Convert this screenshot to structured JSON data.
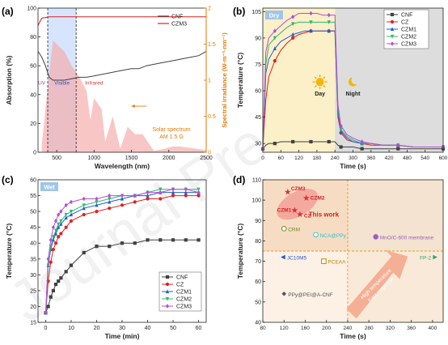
{
  "figure": {
    "watermark": "Journal Pre-proofs",
    "colors": {
      "CNF": "#404040",
      "CZ": "#e02020",
      "CZM1": "#1f5fd6",
      "CZM2": "#2fb86b",
      "CZM3": "#b34fd6",
      "orange": "#e07a00",
      "dark": "#222222"
    }
  },
  "chart_data": [
    {
      "panel": "(a)",
      "type": "line",
      "xlabel": "Wavelength (nm)",
      "ylabel": "Absorption (%)",
      "y2label": "Spectral irradiance (W·m⁻²·nm⁻¹)",
      "xlim": [
        250,
        2500
      ],
      "ylim": [
        0,
        100
      ],
      "y2lim": [
        0,
        2.0
      ],
      "xticks": [
        500,
        1000,
        1500,
        2000,
        2500
      ],
      "yticks": [
        0,
        20,
        40,
        60,
        80,
        100
      ],
      "y2ticks": [
        0.0,
        0.5,
        1.0,
        1.5,
        2.0
      ],
      "regions": [
        {
          "label": "UV",
          "from": 250,
          "to": 380
        },
        {
          "label": "Visible",
          "from": 380,
          "to": 760
        },
        {
          "label": "Infrared",
          "from": 760,
          "to": 2500
        }
      ],
      "annotation": [
        "Solar spectrum",
        "AM 1.5 G"
      ],
      "legend": "top-right",
      "series": [
        {
          "name": "CNF",
          "x": [
            250,
            300,
            350,
            400,
            450,
            500,
            600,
            700,
            800,
            900,
            1000,
            1100,
            1200,
            1300,
            1400,
            1500,
            1600,
            1700,
            1800,
            1900,
            2000,
            2100,
            2200,
            2300,
            2400,
            2500
          ],
          "values": [
            70,
            66,
            60,
            52,
            50,
            50,
            50,
            51,
            52,
            52,
            53,
            54,
            55,
            56,
            57,
            58,
            58,
            60,
            61,
            62,
            63,
            64,
            65,
            66,
            67,
            70
          ]
        },
        {
          "name": "CZM3",
          "x": [
            250,
            300,
            400,
            600,
            1000,
            1500,
            2000,
            2500
          ],
          "values": [
            88,
            93,
            94,
            94,
            94,
            94,
            94,
            94
          ]
        }
      ],
      "solar_spectrum": {
        "x": [
          300,
          350,
          400,
          450,
          500,
          550,
          600,
          700,
          800,
          900,
          950,
          1000,
          1100,
          1150,
          1250,
          1350,
          1450,
          1550,
          1650,
          1800,
          1950,
          2050,
          2150,
          2300,
          2500
        ],
        "values": [
          0.1,
          0.6,
          1.1,
          1.55,
          1.5,
          1.45,
          1.4,
          1.2,
          1.05,
          0.85,
          0.45,
          0.75,
          0.6,
          0.15,
          0.5,
          0.05,
          0.35,
          0.25,
          0.25,
          0.02,
          0.05,
          0.08,
          0.08,
          0.06,
          0.03
        ]
      }
    },
    {
      "panel": "(b)",
      "type": "line",
      "tag": "Dry",
      "xlabel": "Time (s)",
      "ylabel": "Temperature (°C)",
      "xlim": [
        0,
        600
      ],
      "ylim": [
        25,
        107
      ],
      "xticks": [
        0,
        60,
        120,
        180,
        240,
        300,
        360,
        420,
        480,
        540,
        600
      ],
      "yticks": [
        30,
        45,
        60,
        75,
        90,
        105
      ],
      "regions": [
        {
          "label": "Day",
          "from": 0,
          "to": 240
        },
        {
          "label": "Night",
          "from": 240,
          "to": 600
        }
      ],
      "legend": "top-right",
      "x": [
        0,
        10,
        20,
        40,
        60,
        80,
        100,
        120,
        140,
        160,
        180,
        200,
        220,
        240,
        250,
        260,
        280,
        300,
        330,
        360,
        400,
        450,
        500,
        550,
        600
      ],
      "series": [
        {
          "name": "CNF",
          "values": [
            27,
            29,
            30,
            30,
            31,
            31,
            31,
            31,
            31,
            31,
            31,
            31,
            31,
            31,
            29,
            28,
            28,
            28,
            27,
            27,
            27,
            27,
            27,
            27,
            27
          ]
        },
        {
          "name": "CZ",
          "values": [
            27,
            55,
            68,
            77,
            83,
            87,
            90,
            92,
            93,
            94,
            94,
            94,
            94,
            94,
            45,
            36,
            32,
            31,
            30,
            29,
            29,
            29,
            28,
            28,
            28
          ]
        },
        {
          "name": "CZM1",
          "values": [
            27,
            70,
            78,
            84,
            88,
            90,
            92,
            93,
            94,
            94,
            94,
            94,
            94,
            94,
            48,
            37,
            33,
            31,
            30,
            30,
            29,
            29,
            28,
            28,
            28
          ]
        },
        {
          "name": "CZM2",
          "values": [
            27,
            75,
            86,
            90,
            93,
            96,
            98,
            99,
            99,
            99,
            99,
            99,
            99,
            99,
            50,
            38,
            34,
            32,
            30,
            30,
            29,
            29,
            28,
            28,
            28
          ]
        },
        {
          "name": "CZM3",
          "values": [
            27,
            82,
            90,
            94,
            97,
            100,
            102,
            104,
            104,
            104,
            104,
            103,
            103,
            103,
            52,
            40,
            35,
            33,
            31,
            30,
            29,
            29,
            28,
            28,
            28
          ]
        }
      ]
    },
    {
      "panel": "(c)",
      "type": "line",
      "tag": "Wet",
      "xlabel": "Time (min)",
      "ylabel": "Temperature (°C)",
      "xlim": [
        -3,
        63
      ],
      "ylim": [
        15,
        60
      ],
      "xticks": [
        0,
        10,
        20,
        30,
        40,
        50,
        60
      ],
      "yticks": [
        15,
        20,
        25,
        30,
        35,
        40,
        45,
        50,
        55,
        60
      ],
      "legend": "bottom-right",
      "x": [
        0,
        1,
        2,
        3,
        4,
        5,
        6,
        8,
        10,
        15,
        20,
        25,
        30,
        35,
        40,
        45,
        50,
        55,
        60
      ],
      "series": [
        {
          "name": "CNF",
          "values": [
            18,
            20,
            23,
            25,
            27,
            28,
            29,
            31,
            33,
            37,
            39,
            39,
            40,
            40,
            41,
            41,
            41,
            41,
            41
          ]
        },
        {
          "name": "CZ",
          "values": [
            18,
            28,
            34,
            38,
            40,
            42,
            43,
            45,
            47,
            49,
            50,
            51,
            52,
            53,
            54,
            54,
            55,
            55,
            55
          ]
        },
        {
          "name": "CZM1",
          "values": [
            18,
            33,
            38,
            41,
            43,
            45,
            46,
            48,
            49,
            51,
            52,
            53,
            54,
            55,
            55,
            56,
            56,
            56,
            56
          ]
        },
        {
          "name": "CZM2",
          "values": [
            18,
            33,
            39,
            42,
            44,
            46,
            47,
            49,
            50,
            52,
            53,
            54,
            55,
            55,
            56,
            57,
            57,
            57,
            57
          ]
        },
        {
          "name": "CZM3",
          "values": [
            18,
            35,
            41,
            45,
            47,
            49,
            50,
            52,
            53,
            54,
            54,
            55,
            55,
            55,
            56,
            56,
            57,
            57,
            56
          ]
        }
      ]
    },
    {
      "panel": "(d)",
      "type": "scatter",
      "xlabel": "Time (s)",
      "ylabel": "Temperature (°C)",
      "xlim": [
        80,
        420
      ],
      "ylim": [
        40,
        110
      ],
      "xticks": [
        80,
        120,
        160,
        200,
        240,
        280,
        320,
        360,
        400
      ],
      "yticks": [
        40,
        50,
        60,
        70,
        80,
        90,
        100,
        110
      ],
      "guides": {
        "x": 240,
        "y": 75
      },
      "highlight": "This work",
      "arrow_text": [
        "High temperature",
        "Fast response"
      ],
      "points": [
        {
          "label": "CZM3",
          "x": 127,
          "y": 104,
          "marker": "star",
          "color": "#d93030"
        },
        {
          "label": "CZM2",
          "x": 162,
          "y": 101,
          "marker": "star",
          "color": "#d93030"
        },
        {
          "label": "CZM1",
          "x": 140,
          "y": 95,
          "marker": "star",
          "color": "#d93030"
        },
        {
          "label": "CZ",
          "x": 150,
          "y": 93,
          "marker": "star",
          "color": "#d93030"
        },
        {
          "label": "CRM",
          "x": 120,
          "y": 86,
          "marker": "circle-half",
          "color": "#6a8a1f"
        },
        {
          "label": "NCA@PPy",
          "x": 180,
          "y": 83,
          "marker": "circle-half",
          "color": "#2ec4c4"
        },
        {
          "label": "MnO/C-600 membrane",
          "x": 293,
          "y": 82,
          "marker": "circle",
          "color": "#9b5fc0"
        },
        {
          "label": "JC10M5",
          "x": 118,
          "y": 72,
          "marker": "triangle-left",
          "color": "#2a56c6"
        },
        {
          "label": "PCEAA",
          "x": 195,
          "y": 70,
          "marker": "square-half",
          "color": "#b8860b"
        },
        {
          "label": "FP-2",
          "x": 405,
          "y": 72,
          "marker": "triangle-right",
          "color": "#2fa86b"
        },
        {
          "label": "PPy@PEI@A-CNF",
          "x": 120,
          "y": 54,
          "marker": "diamond",
          "color": "#555555"
        }
      ]
    }
  ]
}
